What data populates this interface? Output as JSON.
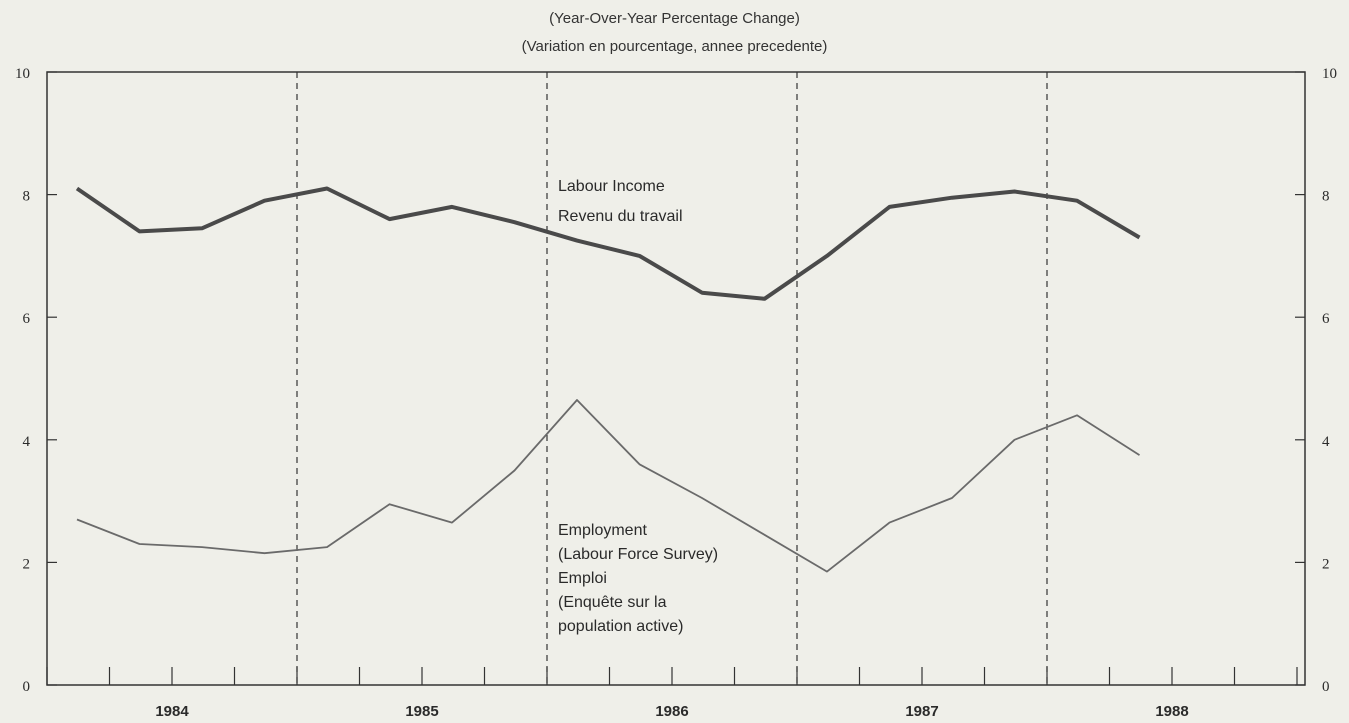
{
  "subtitle_en": "(Year-Over-Year Percentage Change)",
  "subtitle_fr": "(Variation en pourcentage, annee precedente)",
  "chart_data": {
    "type": "line",
    "ylim": [
      0,
      10
    ],
    "yticks": [
      0,
      2,
      4,
      6,
      8,
      10
    ],
    "year_labels": [
      "1984",
      "1985",
      "1986",
      "1987",
      "1988"
    ],
    "quarters_per_year": 4,
    "grid": false,
    "year_dividers_dashed": true,
    "series": [
      {
        "name": "Labour Income / Revenu du travail",
        "color": "#4a4a4a",
        "values": [
          8.1,
          7.4,
          7.45,
          7.9,
          8.1,
          7.6,
          7.8,
          7.55,
          7.25,
          7.0,
          6.4,
          6.3,
          7.0,
          7.8,
          7.95,
          8.05,
          7.9,
          7.3
        ]
      },
      {
        "name": "Employment (Labour Force Survey) / Emploi (Enquête sur la population active)",
        "color": "#6a6a6a",
        "values": [
          2.7,
          2.3,
          2.25,
          2.15,
          2.25,
          2.95,
          2.65,
          3.5,
          4.65,
          3.6,
          3.05,
          2.45,
          1.85,
          2.65,
          3.05,
          4.0,
          4.4,
          3.75
        ]
      }
    ],
    "annotations": {
      "labour_income": [
        "Labour Income",
        "Revenu du travail"
      ],
      "employment": [
        "Employment",
        "(Labour Force Survey)",
        "Emploi",
        "(Enquête sur la",
        "population active)"
      ]
    }
  }
}
